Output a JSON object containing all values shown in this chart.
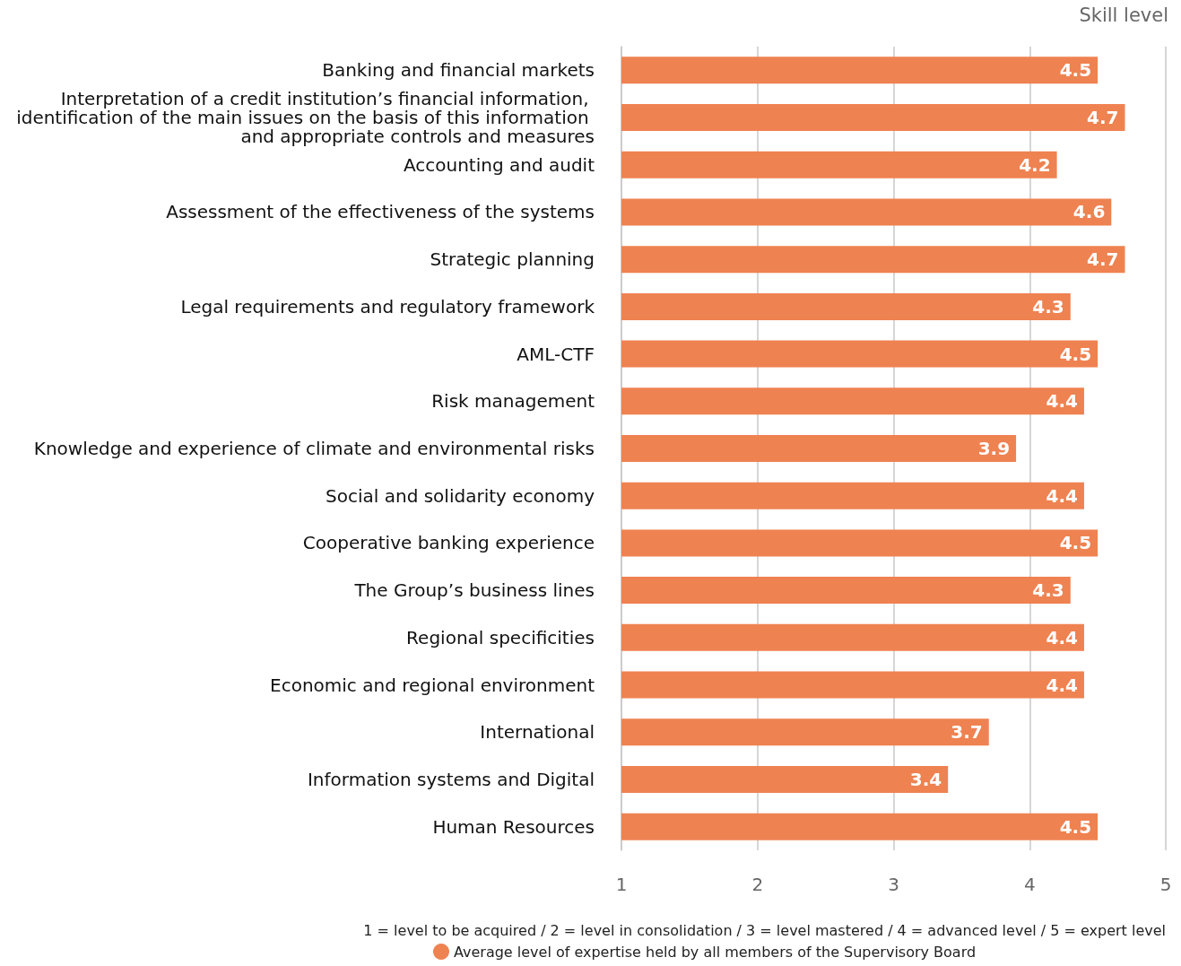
{
  "chart_data": {
    "type": "bar",
    "orientation": "horizontal",
    "xlabel": "Skill level",
    "categories": [
      "Banking and financial markets",
      "Interpretation of a credit institution’s financial information, identification of the main issues on the basis of this information and appropriate controls and measures",
      "Accounting and audit",
      "Assessment of the effectiveness of the systems",
      "Strategic planning",
      "Legal requirements and regulatory framework",
      "AML-CTF",
      "Risk management",
      "Knowledge and experience of climate and environmental risks",
      "Social and solidarity economy",
      "Cooperative banking experience",
      "The Group’s business lines",
      "Regional specificities",
      "Economic and regional environment",
      "International",
      "Information systems and Digital",
      "Human Resources"
    ],
    "series": [
      {
        "name": "Average level of expertise held by all members of the Supervisory Board",
        "color": "#ef8251",
        "values": [
          4.5,
          4.7,
          4.2,
          4.6,
          4.7,
          4.3,
          4.5,
          4.4,
          3.9,
          4.4,
          4.5,
          4.3,
          4.4,
          4.4,
          3.7,
          3.4,
          4.5
        ]
      }
    ],
    "xlim": [
      1,
      5
    ],
    "xticks": [
      1,
      2,
      3,
      4,
      5
    ],
    "grid": "x",
    "data_labels": true,
    "legend": "bottom",
    "annotations": [
      "1 = level to be acquired / 2 = level in consolidation / 3 = level mastered / 4 = advanced level / 5 = expert level"
    ]
  }
}
